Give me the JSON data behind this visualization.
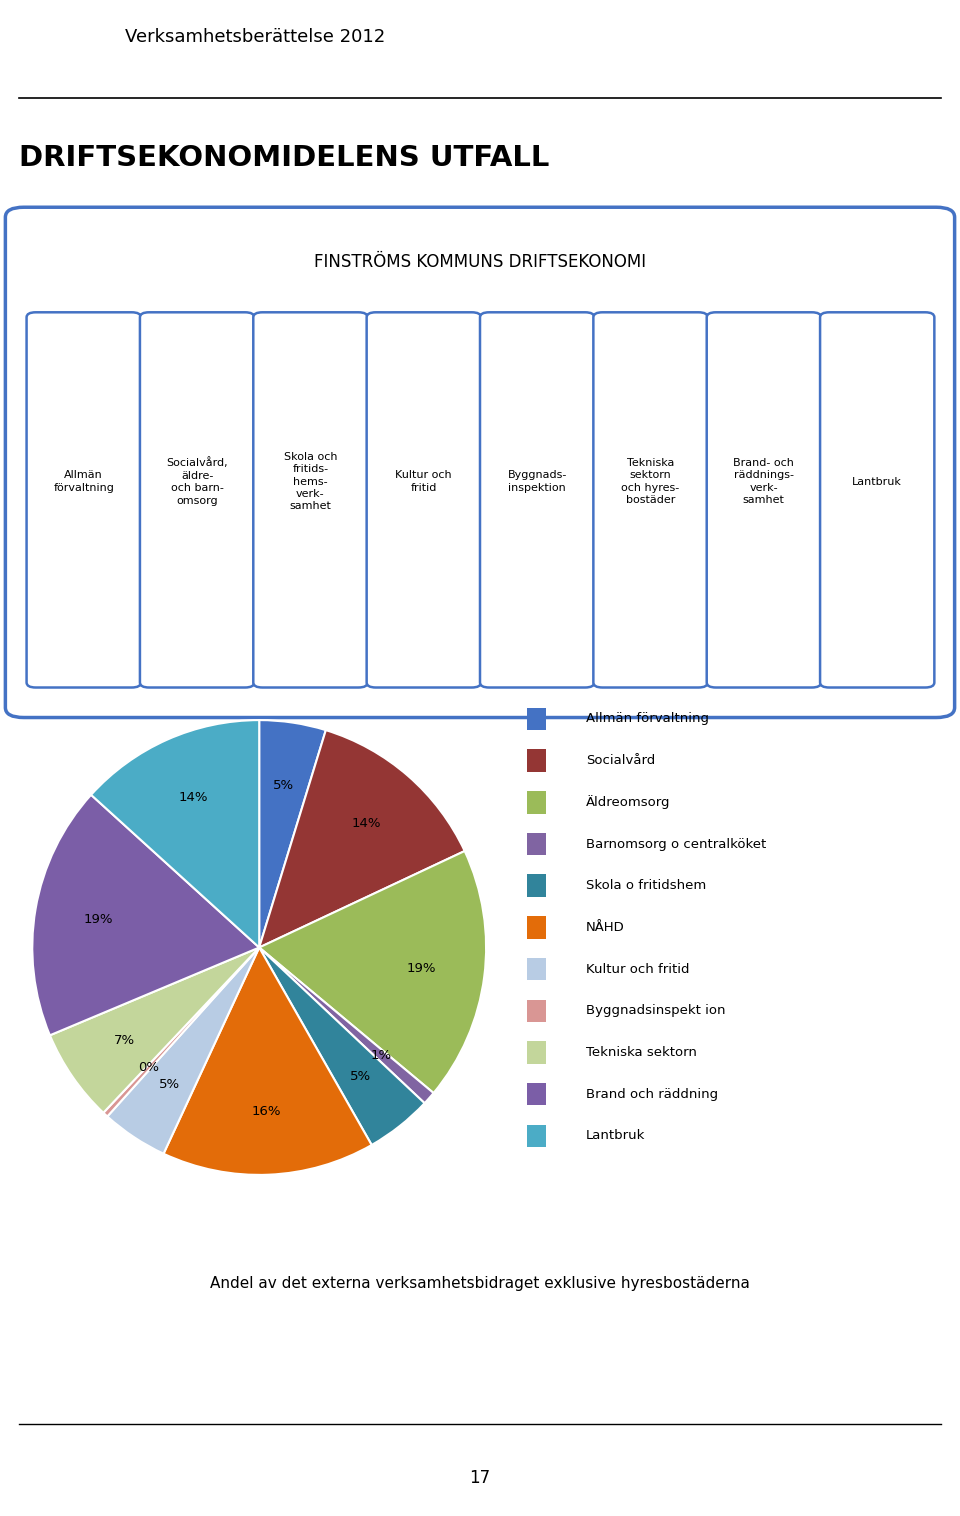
{
  "title_main": "DRIFTSEKONOMIDELENS UTFALL",
  "header_text": "Verksamhetsberättelse 2012",
  "box_title": "FINSTRÖMS KOMMUNS DRIFTSEKONOMI",
  "box_labels": [
    "Allmän\nförvaltning",
    "Socialvård,\näldre-\noch barn-\nomsorg",
    "Skola och\nfritids-\nhems-\nverk-\nsamhet",
    "Kultur och\nfritid",
    "Byggnads-\ninspektion",
    "Tekniska\nsektorn\noch hyres-\nbostäder",
    "Brand- och\nräddnings-\nverk-\nsamhet",
    "Lantbruk"
  ],
  "pie_values": [
    5,
    14,
    19,
    1,
    5,
    16,
    5,
    0.4,
    7,
    19,
    14
  ],
  "pie_percentages": [
    "5%",
    "14%",
    "19%",
    "1%",
    "5%",
    "16%",
    "5%",
    "0%",
    "7%",
    "19%",
    "14%"
  ],
  "pie_colors": [
    "#4472C4",
    "#943634",
    "#9BBB59",
    "#8064A2",
    "#31849B",
    "#E36C09",
    "#B8CCE4",
    "#D99694",
    "#C3D69B",
    "#7B5EA7",
    "#4BACC6"
  ],
  "legend_labels": [
    "Allmän förvaltning",
    "Socialvård",
    "Äldreomsorg",
    "Barnomsorg o centralköket",
    "Skola o fritidshem",
    "NÅHD",
    "Kultur och fritid",
    "Byggnadsinspekt ion",
    "Tekniska sektorn",
    "Brand och räddning",
    "Lantbruk"
  ],
  "footnote": "Andel av det externa verksamhetsbidraget exklusive hyresbostäderna",
  "page_number": "17",
  "background_color": "#FFFFFF",
  "box_border_color": "#4472C4",
  "header_line_color": "#000000"
}
